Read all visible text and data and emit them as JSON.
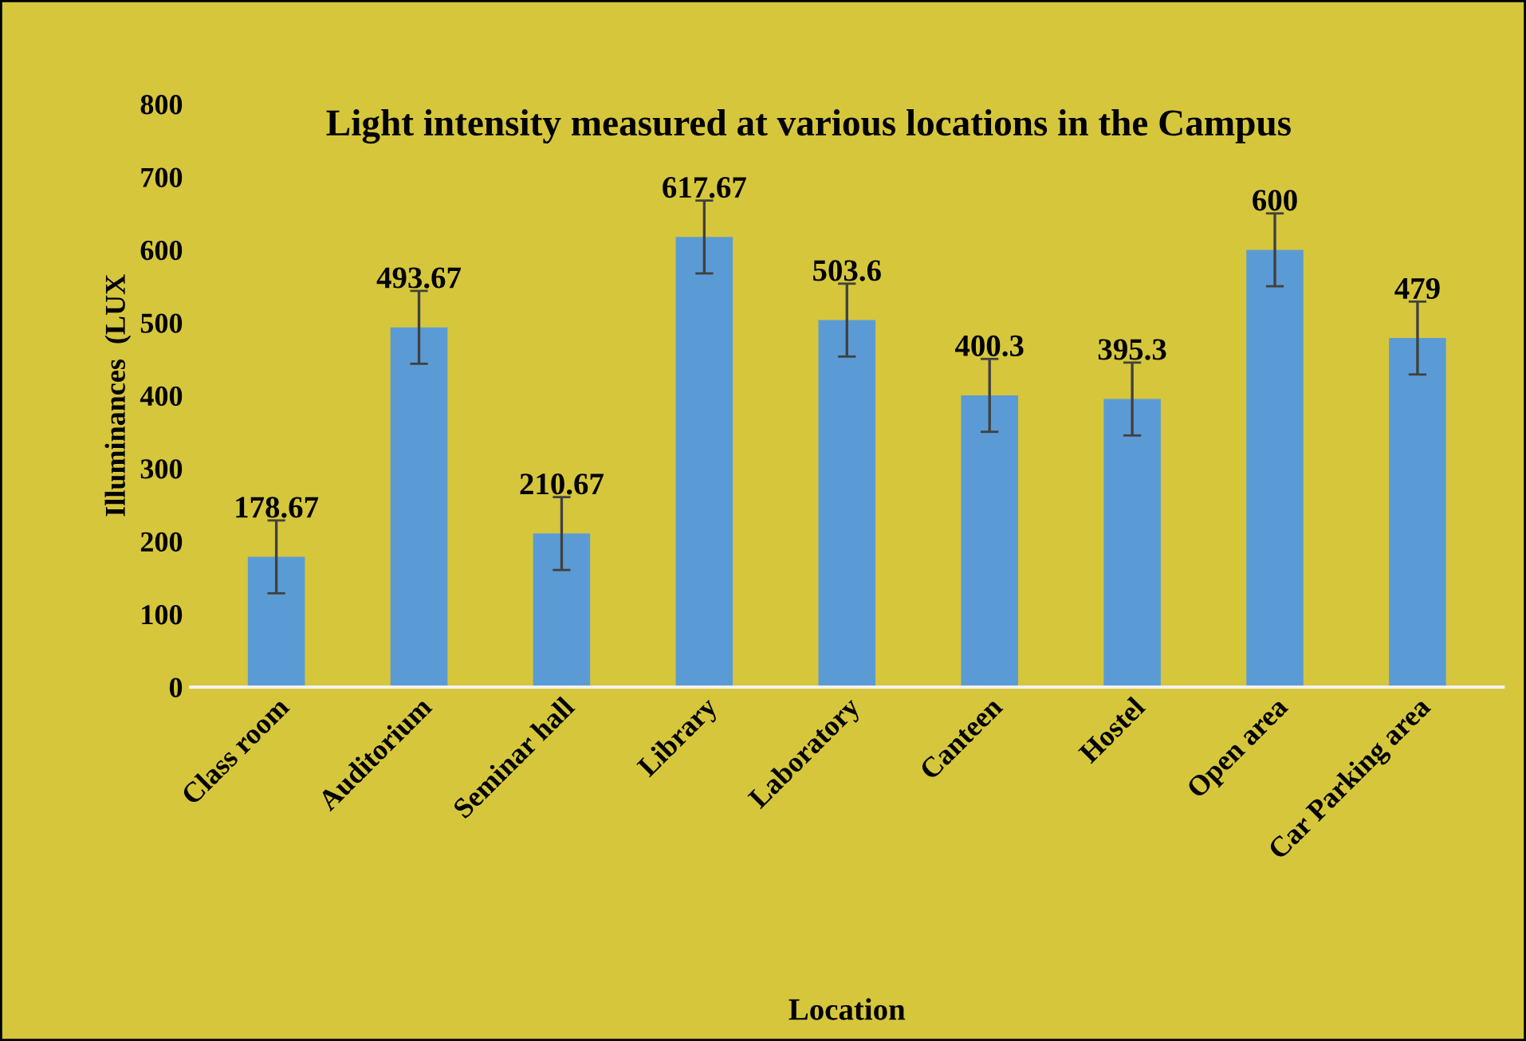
{
  "chart_data": {
    "type": "bar",
    "title": "Light intensity measured at various locations in the Campus",
    "xlabel": "Location",
    "ylabel": "Illuminances  (LUX",
    "categories": [
      "Class room",
      "Auditorium",
      "Seminar hall",
      "Library",
      "Laboratory",
      "Canteen",
      "Hostel",
      "Open area",
      "Car Parking area"
    ],
    "values": [
      178.67,
      493.67,
      210.67,
      617.67,
      503.6,
      400.3,
      395.3,
      600,
      479
    ],
    "errors": [
      50,
      50,
      50,
      50,
      50,
      50,
      50,
      50,
      50
    ],
    "color": "#5b9bd5",
    "ylim": [
      0,
      800
    ],
    "yticks": [
      0,
      100,
      200,
      300,
      400,
      500,
      600,
      700,
      800
    ],
    "data_labels": true,
    "grid": false,
    "legend": false
  }
}
